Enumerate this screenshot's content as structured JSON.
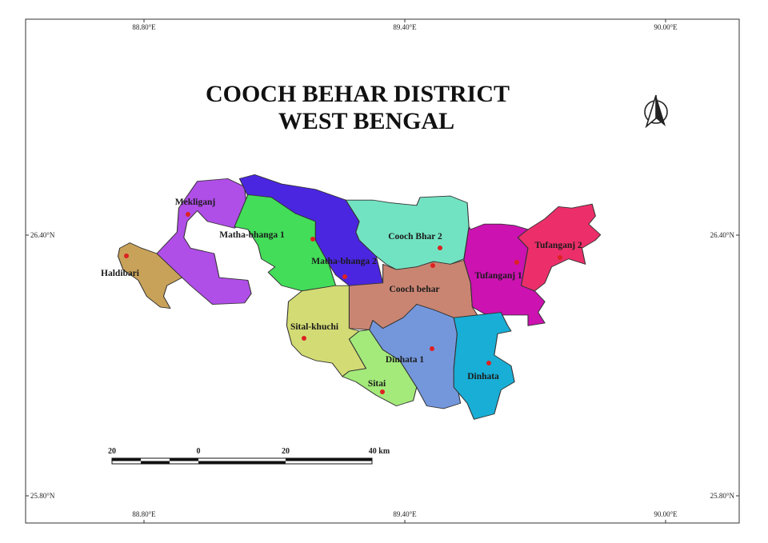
{
  "map": {
    "title_line1": "COOCH BEHAR DISTRICT",
    "title_line2": "WEST BENGAL",
    "graticule": {
      "longitudes": [
        "88.80°E",
        "89.40°E",
        "90.00°E"
      ],
      "latitudes": [
        "26.40°N",
        "25.80°N"
      ]
    },
    "north_arrow": "north-arrow-icon",
    "scale_bar": {
      "labels": [
        "20",
        "0",
        "20",
        "40 km"
      ]
    },
    "districts": [
      {
        "name": "Haldibari",
        "color": "#c9a25a"
      },
      {
        "name": "Mekliganj",
        "color": "#b04ee8"
      },
      {
        "name": "Matha-bhanga 2",
        "color": "#4a26e0"
      },
      {
        "name": "Matha-bhanga 1",
        "color": "#43dd5a"
      },
      {
        "name": "Cooch Bhar 2",
        "color": "#72e3c2"
      },
      {
        "name": "Cooch behar",
        "color": "#c98572"
      },
      {
        "name": "Tufanganj 1",
        "color": "#cc12b0"
      },
      {
        "name": "Tufanganj 2",
        "color": "#ec2f6a"
      },
      {
        "name": "Sital-khuchi",
        "color": "#d3db74"
      },
      {
        "name": "Sitai",
        "color": "#a3ea7a"
      },
      {
        "name": "Dinhata 1",
        "color": "#7497dc"
      },
      {
        "name": "Dinhata",
        "color": "#19aed6"
      }
    ],
    "centroid_color": "#dd2222"
  }
}
